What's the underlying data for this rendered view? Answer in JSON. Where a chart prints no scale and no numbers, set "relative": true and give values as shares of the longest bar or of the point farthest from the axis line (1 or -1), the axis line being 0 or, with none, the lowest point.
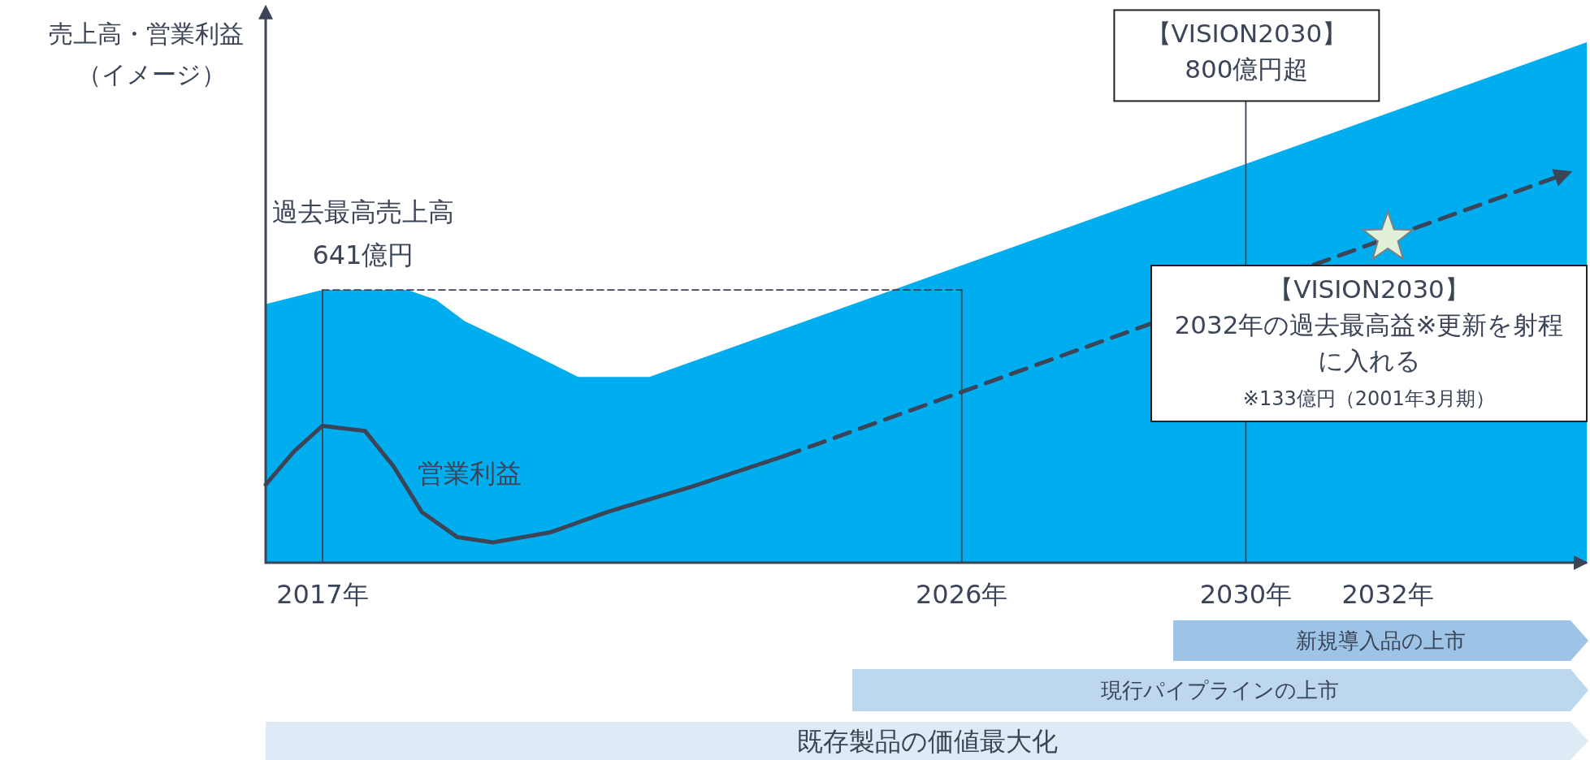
{
  "chart_data": {
    "type": "area",
    "relative": true,
    "ylabel": "売上高・営業利益（イメージ）",
    "xlim": [
      2016.2,
      2034.8
    ],
    "xticks": [
      {
        "value": 2017,
        "label": "2017年"
      },
      {
        "value": 2026,
        "label": "2026年"
      },
      {
        "value": 2030,
        "label": "2030年"
      },
      {
        "value": 2032,
        "label": "2032年"
      }
    ],
    "tick_labels": "x",
    "legend": false,
    "grid": false,
    "series": [
      {
        "color": "#00aeef",
        "x": [
          2016.2,
          2017.0,
          2018.2,
          2018.6,
          2019.0,
          2019.6,
          2020.2,
          2020.6,
          2021.6,
          2034.8
        ],
        "values": [
          0.497,
          0.524,
          0.524,
          0.505,
          0.464,
          0.425,
          0.384,
          0.357,
          0.357,
          1.0
        ]
      },
      {
        "type": "line",
        "name": "営業利益",
        "color": "#3b4557",
        "line_style": "solid",
        "x": [
          2016.2,
          2016.6,
          2017.0,
          2017.6,
          2018.0,
          2018.4,
          2018.9,
          2019.4,
          2020.2,
          2021.0,
          2022.2,
          2023.5
        ],
        "values": [
          0.15,
          0.214,
          0.263,
          0.253,
          0.185,
          0.097,
          0.049,
          0.039,
          0.058,
          0.097,
          0.146,
          0.205
        ]
      },
      {
        "type": "line",
        "color": "#3b4557",
        "line_style": "dashed",
        "x": [
          2023.5,
          2034.5
        ],
        "values": [
          0.205,
          0.747
        ]
      },
      {
        "type": "line",
        "color": "#3b4557",
        "line_style": "dashed",
        "x": [
          2017,
          2026
        ],
        "values": [
          0.524,
          0.524
        ]
      },
      {
        "type": "line",
        "color": "#3b4557",
        "line_style": "solid",
        "x": [
          2017,
          2017
        ],
        "values": [
          0,
          0.524
        ]
      },
      {
        "type": "line",
        "color": "#3b4557",
        "line_style": "solid",
        "x": [
          2026,
          2026
        ],
        "values": [
          0,
          0.524
        ]
      },
      {
        "type": "line",
        "color": "#3b4557",
        "line_style": "solid",
        "x": [
          2030,
          2030
        ],
        "values": [
          0,
          0.887
        ]
      },
      {
        "type": "scatter",
        "color": "#e2f0d9",
        "marker": "star",
        "x": [
          2032
        ],
        "values": [
          0.624
        ]
      }
    ],
    "annotations": [
      {
        "text": "過去最高売上高\n641億円",
        "x": 2017,
        "y": 0.524
      },
      {
        "text": "【VISION2030】\n800億円超",
        "x": 2030,
        "y": 0.887
      },
      {
        "text": "【VISION2030】\n2032年の過去最高益※更新を射程に入れる\n※133億円（2001年3月期）",
        "x": 2032,
        "y": 0.624
      },
      "新規導入品の上市",
      "現行パイプラインの上市",
      "既存製品の価値最大化"
    ]
  }
}
